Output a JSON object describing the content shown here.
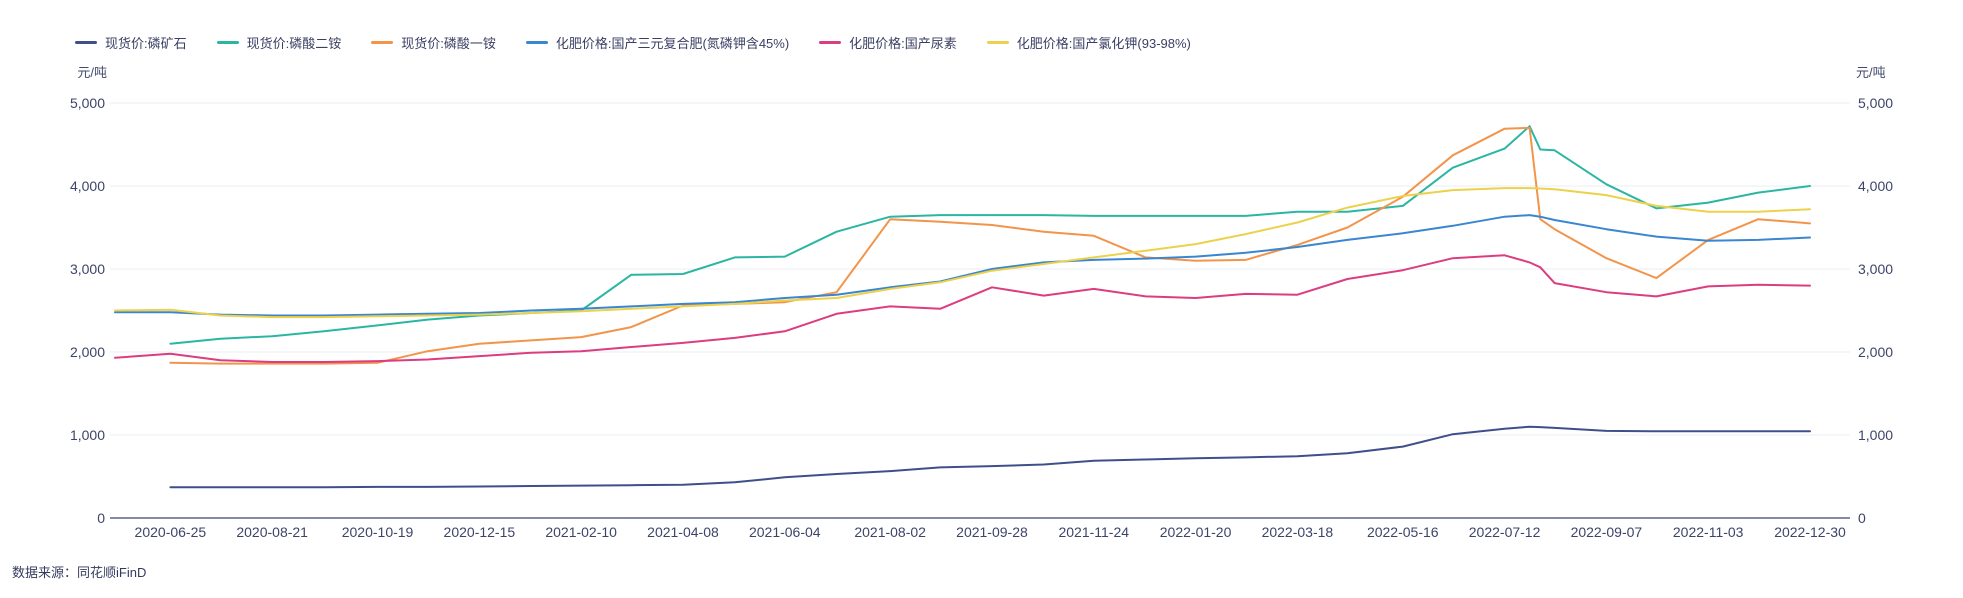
{
  "axes": {
    "unit_left": "元/吨",
    "unit_right": "元/吨",
    "y_ticks": [
      "0",
      "1,000",
      "2,000",
      "3,000",
      "4,000",
      "5,000"
    ],
    "x_ticks": [
      "2020-06-25",
      "2020-08-21",
      "2020-10-19",
      "2020-12-15",
      "2021-02-10",
      "2021-04-08",
      "2021-06-04",
      "2021-08-02",
      "2021-09-28",
      "2021-11-24",
      "2022-01-20",
      "2022-03-18",
      "2022-05-16",
      "2022-07-12",
      "2022-09-07",
      "2022-11-03",
      "2022-12-30"
    ]
  },
  "footer": {
    "source": "数据来源：同花顺iFinD"
  },
  "colors": {
    "grid": "#e9ecf4",
    "axis": "#5c6488",
    "tick_text": "#3d4468"
  },
  "chart_data": {
    "type": "line",
    "title": "",
    "y_unit": "元/吨",
    "ylim": [
      0,
      5000
    ],
    "grid": true,
    "legend_position": "top-left",
    "x": [
      "2020-05-25",
      "2020-06-25",
      "2020-07-23",
      "2020-08-21",
      "2020-09-19",
      "2020-10-19",
      "2020-11-16",
      "2020-12-15",
      "2021-01-13",
      "2021-02-10",
      "2021-03-10",
      "2021-04-08",
      "2021-05-07",
      "2021-06-04",
      "2021-07-03",
      "2021-08-02",
      "2021-08-30",
      "2021-09-28",
      "2021-10-27",
      "2021-11-24",
      "2021-12-23",
      "2022-01-20",
      "2022-02-17",
      "2022-03-18",
      "2022-04-15",
      "2022-05-16",
      "2022-06-13",
      "2022-07-12",
      "2022-07-26",
      "2022-08-01",
      "2022-08-09",
      "2022-09-07",
      "2022-10-05",
      "2022-11-03",
      "2022-12-01",
      "2022-12-30"
    ],
    "series": [
      {
        "name": "现货价:磷矿石",
        "color": "#404f8c",
        "values": [
          null,
          370,
          370,
          370,
          370,
          375,
          375,
          380,
          385,
          390,
          395,
          400,
          430,
          490,
          530,
          565,
          610,
          625,
          645,
          690,
          705,
          720,
          730,
          745,
          780,
          860,
          1010,
          1075,
          1100,
          1095,
          1085,
          1050,
          1045,
          1045,
          1045,
          1045
        ]
      },
      {
        "name": "现货价:磷酸二铵",
        "color": "#2ab6a2",
        "values": [
          null,
          2100,
          2160,
          2190,
          2250,
          2320,
          2390,
          2440,
          2470,
          2500,
          2930,
          2940,
          3140,
          3150,
          3450,
          3630,
          3650,
          3650,
          3650,
          3640,
          3640,
          3640,
          3640,
          3690,
          3690,
          3760,
          4220,
          4450,
          4720,
          4440,
          4430,
          4020,
          3730,
          3800,
          3920,
          4000
        ]
      },
      {
        "name": "现货价:磷酸一铵",
        "color": "#f3944b",
        "values": [
          null,
          1870,
          1860,
          1860,
          1860,
          1870,
          2010,
          2100,
          2140,
          2180,
          2300,
          2560,
          2580,
          2600,
          2720,
          3600,
          3570,
          3530,
          3450,
          3400,
          3140,
          3100,
          3110,
          3290,
          3500,
          3870,
          4370,
          4690,
          4700,
          3600,
          3480,
          3130,
          2890,
          3350,
          3600,
          3550
        ]
      },
      {
        "name": "化肥价格:国产三元复合肥(氮磷钾含45%)",
        "color": "#3a86d0",
        "values": [
          2480,
          2480,
          2450,
          2440,
          2440,
          2450,
          2460,
          2470,
          2500,
          2520,
          2550,
          2580,
          2600,
          2650,
          2690,
          2780,
          2850,
          3000,
          3080,
          3110,
          3125,
          3150,
          3195,
          3265,
          3350,
          3430,
          3520,
          3630,
          3650,
          3630,
          3590,
          3480,
          3390,
          3340,
          3350,
          3380
        ]
      },
      {
        "name": "化肥价格:国产尿素",
        "color": "#dc3c80",
        "values": [
          1930,
          1980,
          1900,
          1880,
          1880,
          1890,
          1910,
          1950,
          1990,
          2010,
          2060,
          2110,
          2170,
          2250,
          2460,
          2550,
          2520,
          2780,
          2680,
          2760,
          2670,
          2650,
          2700,
          2690,
          2880,
          2985,
          3130,
          3165,
          3080,
          3020,
          2830,
          2720,
          2670,
          2790,
          2810,
          2800
        ]
      },
      {
        "name": "化肥价格:国产氯化钾(93-98%)",
        "color": "#ecd14d",
        "values": [
          2500,
          2510,
          2440,
          2420,
          2420,
          2430,
          2440,
          2450,
          2470,
          2490,
          2520,
          2550,
          2580,
          2620,
          2650,
          2760,
          2840,
          2980,
          3060,
          3140,
          3220,
          3300,
          3420,
          3560,
          3740,
          3880,
          3950,
          3975,
          3975,
          3970,
          3960,
          3890,
          3760,
          3690,
          3690,
          3720
        ]
      }
    ]
  }
}
